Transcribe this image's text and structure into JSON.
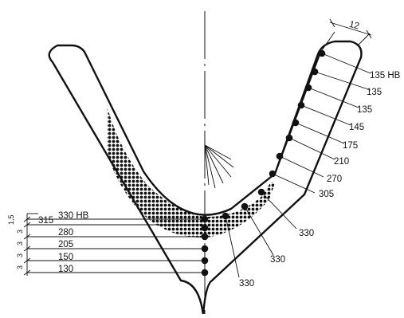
{
  "dimension_width": "12",
  "right_labels": [
    "135 HB",
    "135",
    "135",
    "145",
    "175",
    "210",
    "270",
    "305"
  ],
  "bottom_labels": [
    "330",
    "330",
    "330"
  ],
  "left_values": [
    "315",
    "330 HB",
    "280",
    "205",
    "150",
    "130"
  ],
  "left_spacings": [
    "1,5",
    "3",
    "3",
    "3",
    "3"
  ]
}
